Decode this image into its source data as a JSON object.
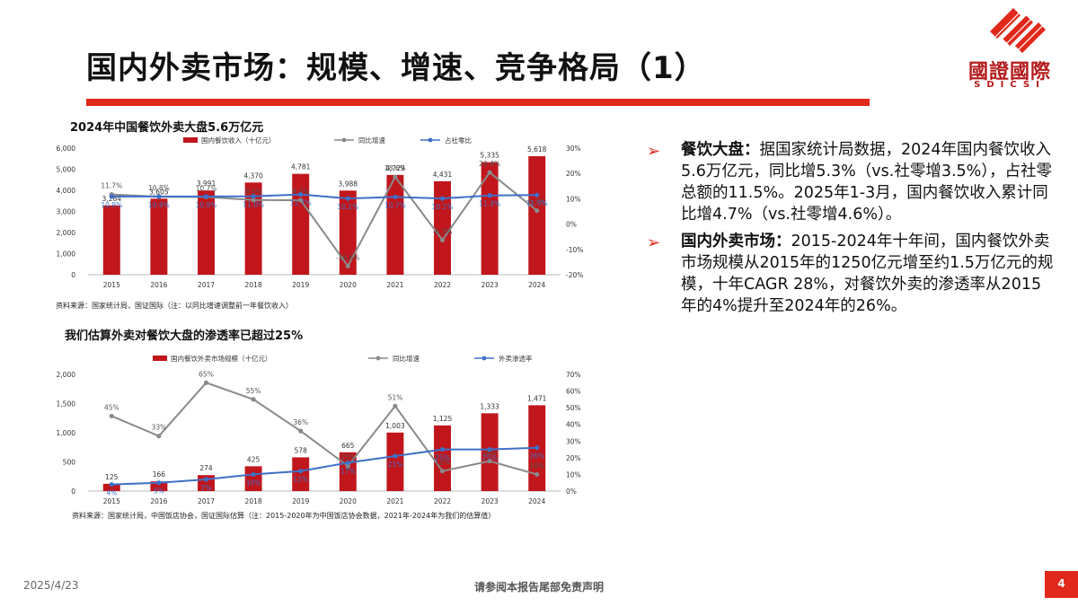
{
  "title": "国内外卖市场：规模、增速、竞争格局（1）",
  "logo": {
    "cn": "國證國際",
    "en": "SDICSI"
  },
  "footer": {
    "date": "2025/4/23",
    "disclaimer": "请参阅本报告尾部免责声明",
    "page": "4"
  },
  "colors": {
    "brand_red": "#e0281b",
    "bar_red": "#c0161c",
    "growth_gray": "#8a8a8a",
    "share_blue": "#3f6fc6"
  },
  "chart_data": [
    {
      "type": "bar",
      "title": "2024年中国餐饮外卖大盘5.6万亿元",
      "categories": [
        "2015",
        "2016",
        "2017",
        "2018",
        "2019",
        "2020",
        "2021",
        "2022",
        "2023",
        "2024"
      ],
      "series": [
        {
          "name": "国内餐饮收入（十亿元）",
          "type": "bar",
          "axis": "left",
          "values": [
            3284,
            3605,
            3991,
            4370,
            4781,
            3988,
            4729,
            4431,
            5335,
            5618
          ],
          "labels": [
            "3,284",
            "3,605",
            "3,991",
            "4,370",
            "4,781",
            "3,988",
            "4,729",
            "4,431",
            "5,335",
            "5,618"
          ]
        },
        {
          "name": "同比增速",
          "type": "line",
          "axis": "right",
          "values": [
            11.7,
            10.8,
            10.7,
            9.5,
            9.4,
            -16.6,
            18.6,
            -6.3,
            20.4,
            5.3
          ],
          "labels": [
            "11.7%",
            "10.8%",
            "10.7%",
            "9.5%",
            "9.4%",
            "-16.6%",
            "18.6%",
            "-6.3%",
            "20.4%",
            "5.3%"
          ]
        },
        {
          "name": "占社零比",
          "type": "line",
          "axis": "right",
          "values": [
            10.9,
            10.9,
            10.9,
            11.0,
            11.7,
            10.1,
            10.7,
            10.1,
            11.3,
            11.5
          ],
          "labels": [
            "10.9%",
            "10.9%",
            "10.9%",
            "11.0%",
            "11.7%",
            "10.1%",
            "10.7%",
            "10.1%",
            "11.3%",
            "11.5%"
          ]
        }
      ],
      "y_left": {
        "range": [
          0,
          6000
        ],
        "ticks": [
          "0",
          "1,000",
          "2,000",
          "3,000",
          "4,000",
          "5,000",
          "6,000"
        ]
      },
      "y_right": {
        "range": [
          -20,
          30
        ],
        "ticks": [
          "-20%",
          "-10%",
          "0%",
          "10%",
          "20%",
          "30%"
        ]
      },
      "legend_position": "top",
      "source": "资料来源：国家统计局，国证国际（注：以同比增速调整前一年餐饮收入）"
    },
    {
      "type": "bar",
      "title": "我们估算外卖对餐饮大盘的渗透率已超过25%",
      "categories": [
        "2015",
        "2016",
        "2017",
        "2018",
        "2019",
        "2020",
        "2021",
        "2022",
        "2023",
        "2024"
      ],
      "series": [
        {
          "name": "国内餐饮外卖市场规模（十亿元）",
          "type": "bar",
          "axis": "left",
          "values": [
            125,
            166,
            274,
            425,
            578,
            665,
            1003,
            1125,
            1333,
            1471
          ],
          "labels": [
            "125",
            "166",
            "274",
            "425",
            "578",
            "665",
            "1,003",
            "1,125",
            "1,333",
            "1,471"
          ]
        },
        {
          "name": "同比增速",
          "type": "line",
          "axis": "right",
          "values": [
            45,
            33,
            65,
            55,
            36,
            15,
            51,
            12,
            18,
            10
          ],
          "labels": [
            "45%",
            "33%",
            "65%",
            "55%",
            "36%",
            "15%",
            "51%",
            "12%",
            "18%",
            "10%"
          ]
        },
        {
          "name": "外卖渗透率",
          "type": "line",
          "axis": "right",
          "values": [
            4,
            5,
            7,
            10,
            12,
            17,
            21,
            25,
            25,
            26
          ],
          "labels": [
            "4%",
            "5%",
            "7%",
            "10%",
            "12%",
            "17%",
            "21%",
            "25%",
            "25%",
            "26%"
          ]
        }
      ],
      "y_left": {
        "range": [
          0,
          2000
        ],
        "ticks": [
          "0",
          "500",
          "1,000",
          "1,500",
          "2,000"
        ]
      },
      "y_right": {
        "range": [
          0,
          70
        ],
        "ticks": [
          "0%",
          "10%",
          "20%",
          "30%",
          "40%",
          "50%",
          "60%",
          "70%"
        ]
      },
      "legend_position": "top",
      "source": "资料来源：国家统计局，中国饭店协会，国证国际估算（注：2015-2020年为中国饭店协会数据，2021年-2024年为我们的估算值）"
    }
  ],
  "bullets": [
    {
      "head": "餐饮大盘：",
      "text": "据国家统计局数据，2024年国内餐饮收入5.6万亿元，同比增5.3%（vs.社零增3.5%），占社零总额的11.5%。2025年1-3月，国内餐饮收入累计同比增4.7%（vs.社零增4.6%）。"
    },
    {
      "head": "国内外卖市场：",
      "text": "2015-2024年十年间，国内餐饮外卖市场规模从2015年的1250亿元增至约1.5万亿元的规模，十年CAGR 28%，对餐饮外卖的渗透率从2015年的4%提升至2024年的26%。"
    }
  ]
}
